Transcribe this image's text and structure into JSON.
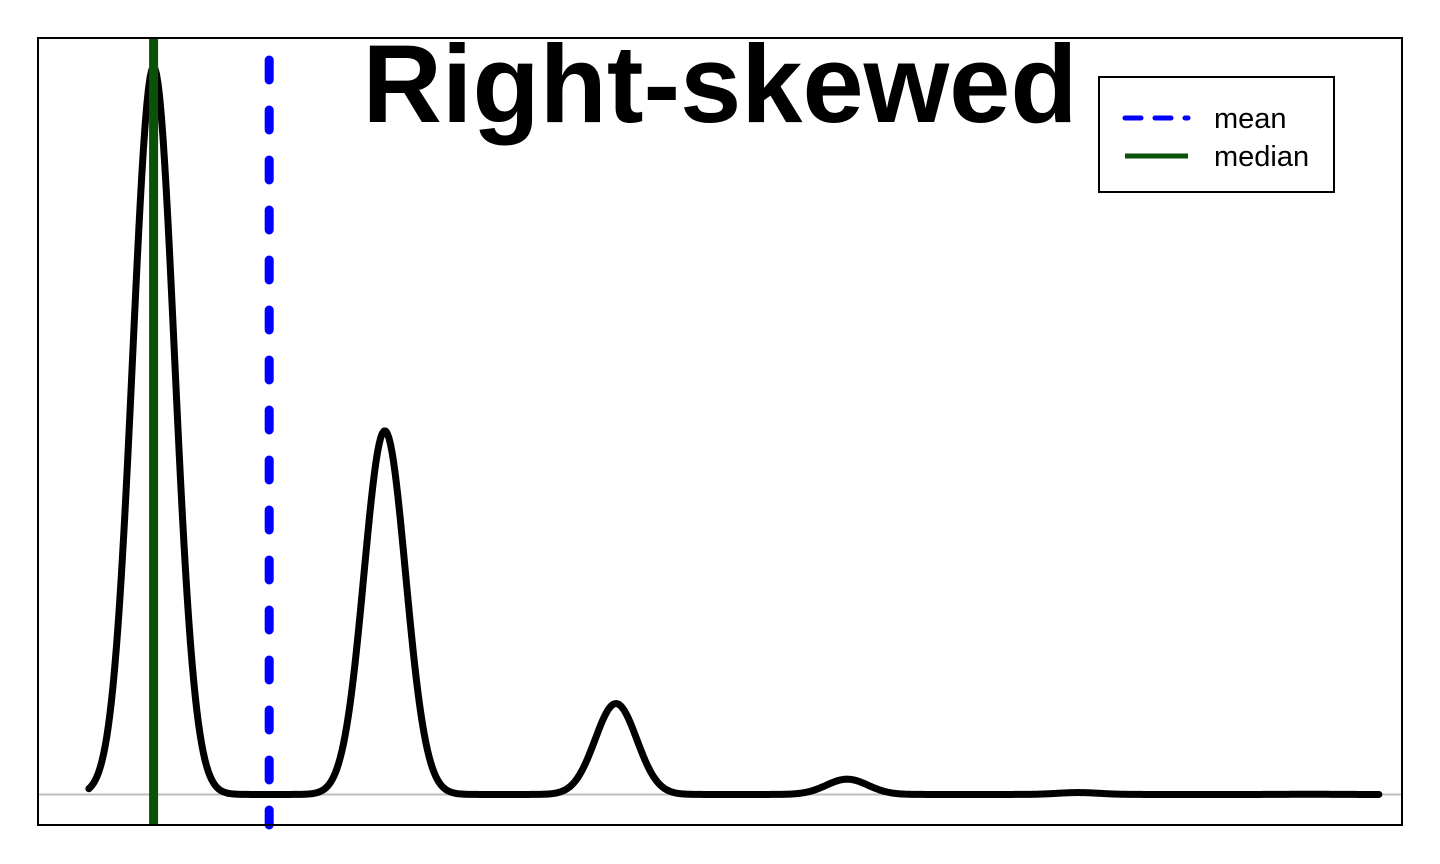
{
  "chart_data": {
    "type": "line",
    "title": "Right-skewed",
    "xlabel": "",
    "ylabel": "",
    "xlim": [
      -0.5,
      5.4
    ],
    "ylim": [
      -0.042,
      1.04
    ],
    "grid": false,
    "axes_ticks": false,
    "baseline_y": 0,
    "legend_position": "top-right",
    "series": [
      {
        "kind": "density",
        "color": "#000000",
        "style": "solid",
        "x_range": [
          -0.28,
          5.3
        ],
        "peaks": [
          {
            "x": 0,
            "y": 1.0,
            "sd": 0.09
          },
          {
            "x": 1,
            "y": 0.5,
            "sd": 0.09
          },
          {
            "x": 2,
            "y": 0.125,
            "sd": 0.09
          },
          {
            "x": 3,
            "y": 0.021,
            "sd": 0.09
          },
          {
            "x": 4,
            "y": 0.0026,
            "sd": 0.09
          },
          {
            "x": 5,
            "y": 0.0003,
            "sd": 0.09
          }
        ]
      }
    ],
    "reference_lines": [
      {
        "name": "mean",
        "x": 0.5,
        "color": "#0000ff",
        "style": "dashed"
      },
      {
        "name": "median",
        "x": 0.0,
        "color": "#0a5209",
        "style": "solid"
      }
    ],
    "legend": [
      {
        "label": "mean",
        "color": "#0000ff",
        "style": "dashed"
      },
      {
        "label": "median",
        "color": "#0a5209",
        "style": "solid"
      }
    ]
  }
}
